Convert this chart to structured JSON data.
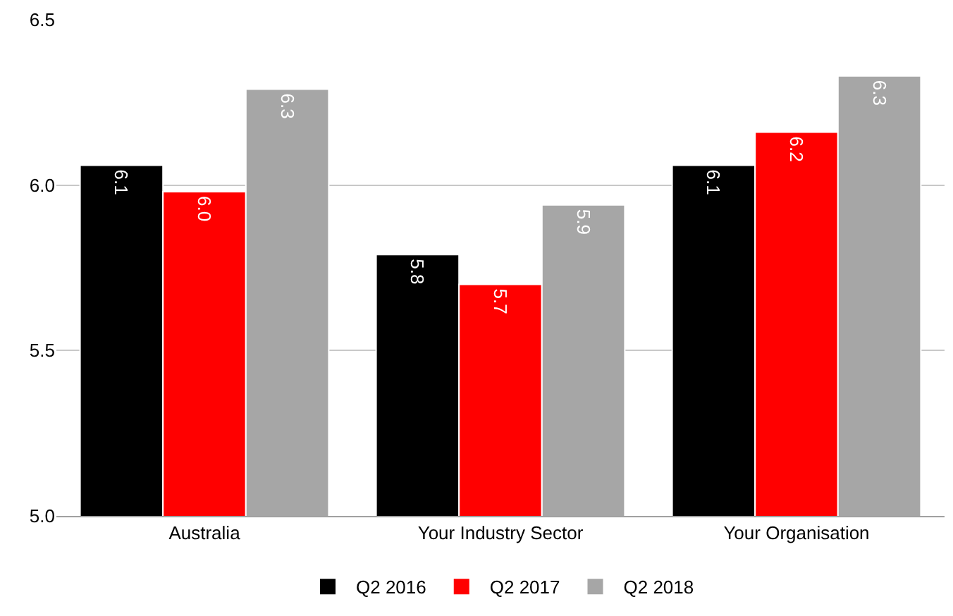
{
  "chart_data": {
    "type": "bar",
    "categories": [
      "Australia",
      "Your Industry Sector",
      "Your Organisation"
    ],
    "series": [
      {
        "name": "Q2 2016",
        "color": "#000000",
        "values": [
          6.06,
          5.79,
          6.06
        ],
        "value_labels": [
          "6.1",
          "5.8",
          "6.1"
        ]
      },
      {
        "name": "Q2 2017",
        "color": "#ff0000",
        "values": [
          5.98,
          5.7,
          6.16
        ],
        "value_labels": [
          "6.0",
          "5.7",
          "6.2"
        ]
      },
      {
        "name": "Q2 2018",
        "color": "#a6a6a6",
        "values": [
          6.29,
          5.94,
          6.33
        ],
        "value_labels": [
          "6.3",
          "5.9",
          "6.3"
        ]
      }
    ],
    "ylim": [
      5.0,
      6.5
    ],
    "yticks": [
      {
        "value": 5.0,
        "label": "5.0"
      },
      {
        "value": 5.5,
        "label": "5.5"
      },
      {
        "value": 6.0,
        "label": "6.0"
      },
      {
        "value": 6.5,
        "label": "6.5"
      }
    ],
    "grid": "y",
    "legend": "bottom"
  }
}
